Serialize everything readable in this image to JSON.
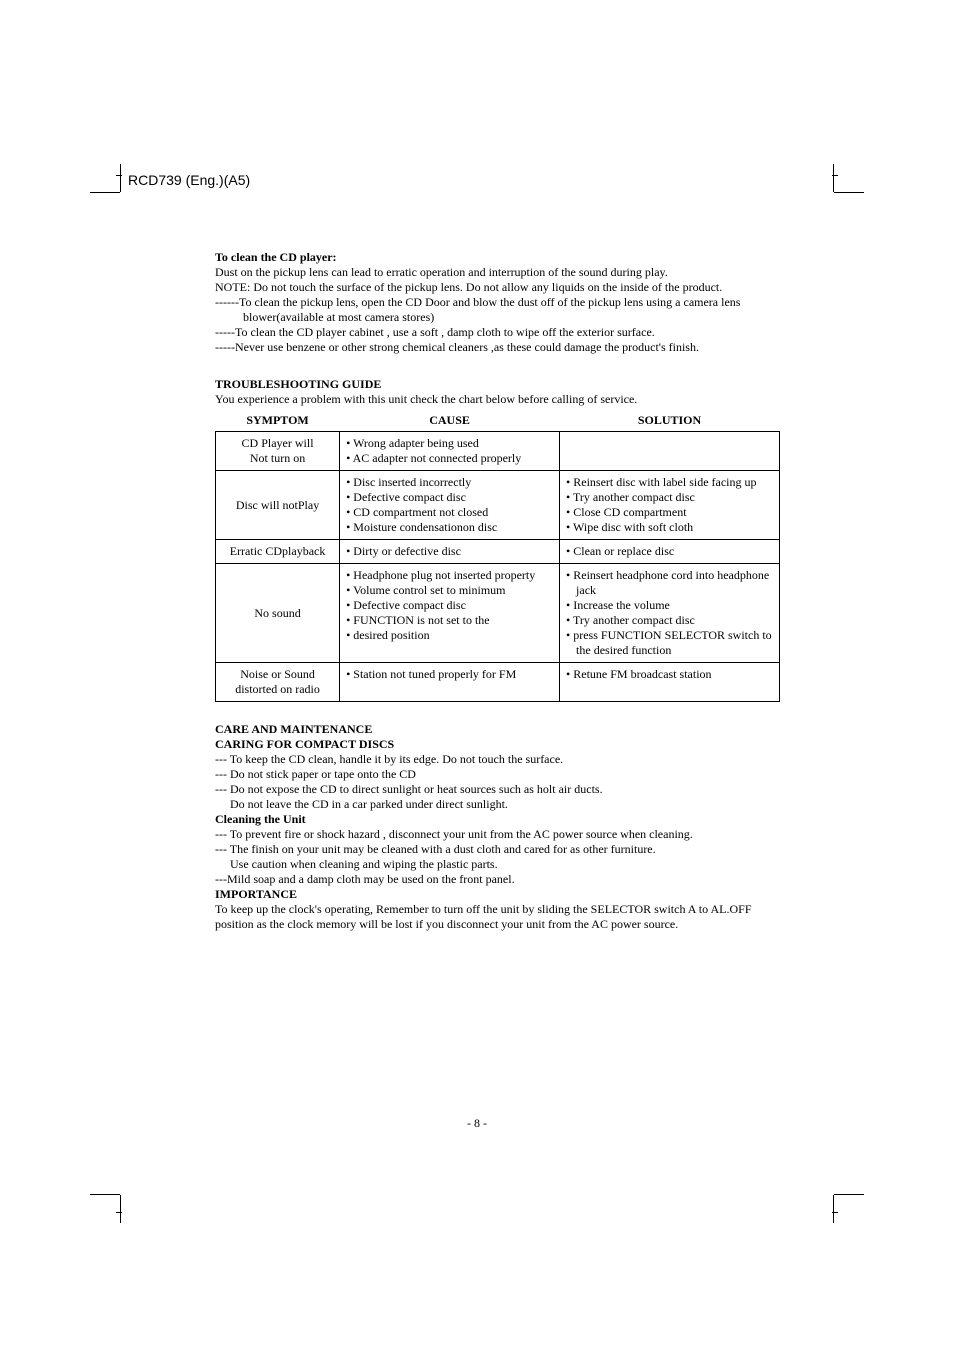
{
  "header": {
    "doc_id": "RCD739 (Eng.)(A5)"
  },
  "clean_section": {
    "title": "To clean the CD player:",
    "lines": [
      "Dust on the pickup lens can lead to erratic operation and interruption of the sound during play.",
      "NOTE: Do not touch the surface of the pickup lens. Do not allow any liquids on the inside of the product."
    ],
    "dashed": [
      "------To clean the pickup lens, open the CD Door and blow the dust off of the pickup lens using a camera lens blower(available at most camera stores)",
      "-----To clean the CD player cabinet , use a soft , damp cloth to wipe off the exterior surface.",
      "-----Never use benzene or other strong chemical cleaners ,as these could damage the product's finish."
    ]
  },
  "troubleshooting": {
    "title": "TROUBLESHOOTING GUIDE",
    "intro": "You experience a problem with this unit check the chart below before calling of service.",
    "headers": {
      "symptom": "SYMPTOM",
      "cause": "CAUSE",
      "solution": "SOLUTION"
    },
    "rows": [
      {
        "symptom": "CD Player will\nNot turn on",
        "cause": [
          "Wrong adapter being used",
          "AC adapter not connected properly"
        ],
        "solution": []
      },
      {
        "symptom": "Disc will notPlay",
        "cause": [
          "Disc inserted incorrectly",
          "Defective compact disc",
          "CD compartment not closed",
          "Moisture condensationon disc"
        ],
        "solution": [
          "Reinsert disc with label side facing up",
          "Try another compact disc",
          "Close CD compartment",
          "Wipe disc with soft cloth"
        ]
      },
      {
        "symptom": "Erratic CDplayback",
        "cause": [
          "Dirty or defective disc"
        ],
        "solution": [
          "Clean or replace disc"
        ]
      },
      {
        "symptom": "No sound",
        "cause": [
          "Headphone plug not inserted property",
          "Volume control set to minimum",
          "Defective compact disc",
          "FUNCTION is not set to the",
          "desired position"
        ],
        "solution": [
          "Reinsert headphone cord into headphone jack",
          "Increase the volume",
          "Try another compact disc",
          "press FUNCTION SELECTOR switch to the desired function"
        ]
      },
      {
        "symptom": "Noise or Sound\ndistorted on radio",
        "cause": [
          "Station not tuned properly for FM"
        ],
        "solution": [
          "Retune FM broadcast  station"
        ]
      }
    ]
  },
  "care": {
    "title1": "CARE AND MAINTENANCE",
    "title2": "CARING FOR COMPACT DISCS",
    "lines1": [
      "--- To keep the CD clean, handle it by its edge. Do not touch the surface.",
      "--- Do not stick paper or tape onto the CD",
      "--- Do not expose the CD to direct sunlight or heat sources such as holt air ducts.",
      "     Do not leave the CD in a car parked under direct sunlight."
    ],
    "cleaning_title": "Cleaning the Unit",
    "lines2": [
      "--- To prevent fire or shock hazard , disconnect your unit from the AC power source when cleaning.",
      "--- The finish on your unit may be cleaned with a dust cloth and cared for as other furniture.",
      "     Use caution when cleaning and wiping the plastic parts.",
      "---Mild soap and a damp cloth may be used on the front panel."
    ],
    "importance_title": "IMPORTANCE",
    "importance_text": "To keep up the clock's operating, Remember to turn off the unit by sliding the SELECTOR switch A to AL.OFF position as the clock memory will be lost if you disconnect your unit from the AC power source."
  },
  "footer": {
    "page_number": "- 8 -"
  }
}
